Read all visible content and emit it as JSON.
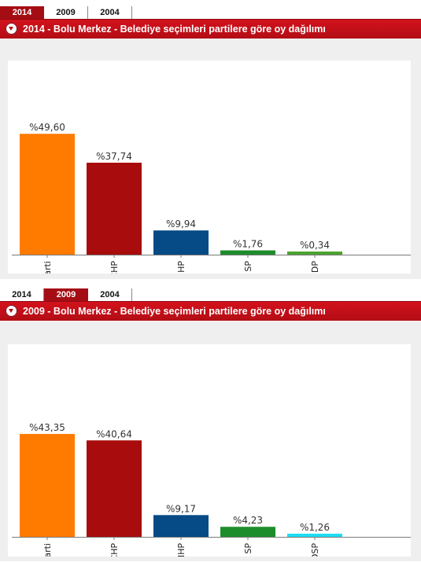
{
  "widgets": [
    {
      "tabs": [
        "2014",
        "2009",
        "2004"
      ],
      "active_tab": 0,
      "title": "2014 - Bolu Merkez - Belediye seçimleri partilere göre oy dağılımı",
      "chart_data": {
        "type": "bar",
        "categories": [
          "AK Parti",
          "CHP",
          "MHP",
          "SP",
          "HDP"
        ],
        "values": [
          49.6,
          37.74,
          9.94,
          1.76,
          0.34
        ],
        "labels": [
          "%49,60",
          "%37,74",
          "%9,94",
          "%1,76",
          "%0,34"
        ],
        "colors": [
          "#ff7b00",
          "#a80c0c",
          "#064a86",
          "#1d8d2b",
          "#4ca32e"
        ],
        "ylim": [
          0,
          50
        ]
      }
    },
    {
      "tabs": [
        "2014",
        "2009",
        "2004"
      ],
      "active_tab": 1,
      "title": "2009 - Bolu Merkez - Belediye seçimleri partilere göre oy dağılımı",
      "chart_data": {
        "type": "bar",
        "categories": [
          "AK Parti",
          "CHP",
          "MHP",
          "SP",
          "DSP"
        ],
        "values": [
          43.35,
          40.64,
          9.17,
          4.23,
          1.26
        ],
        "labels": [
          "%43,35",
          "%40,64",
          "%9,17",
          "%4,23",
          "%1,26"
        ],
        "colors": [
          "#ff7b00",
          "#a80c0c",
          "#064a86",
          "#1d8d2b",
          "#1fdcf5"
        ],
        "ylim": [
          0,
          50
        ]
      }
    }
  ]
}
